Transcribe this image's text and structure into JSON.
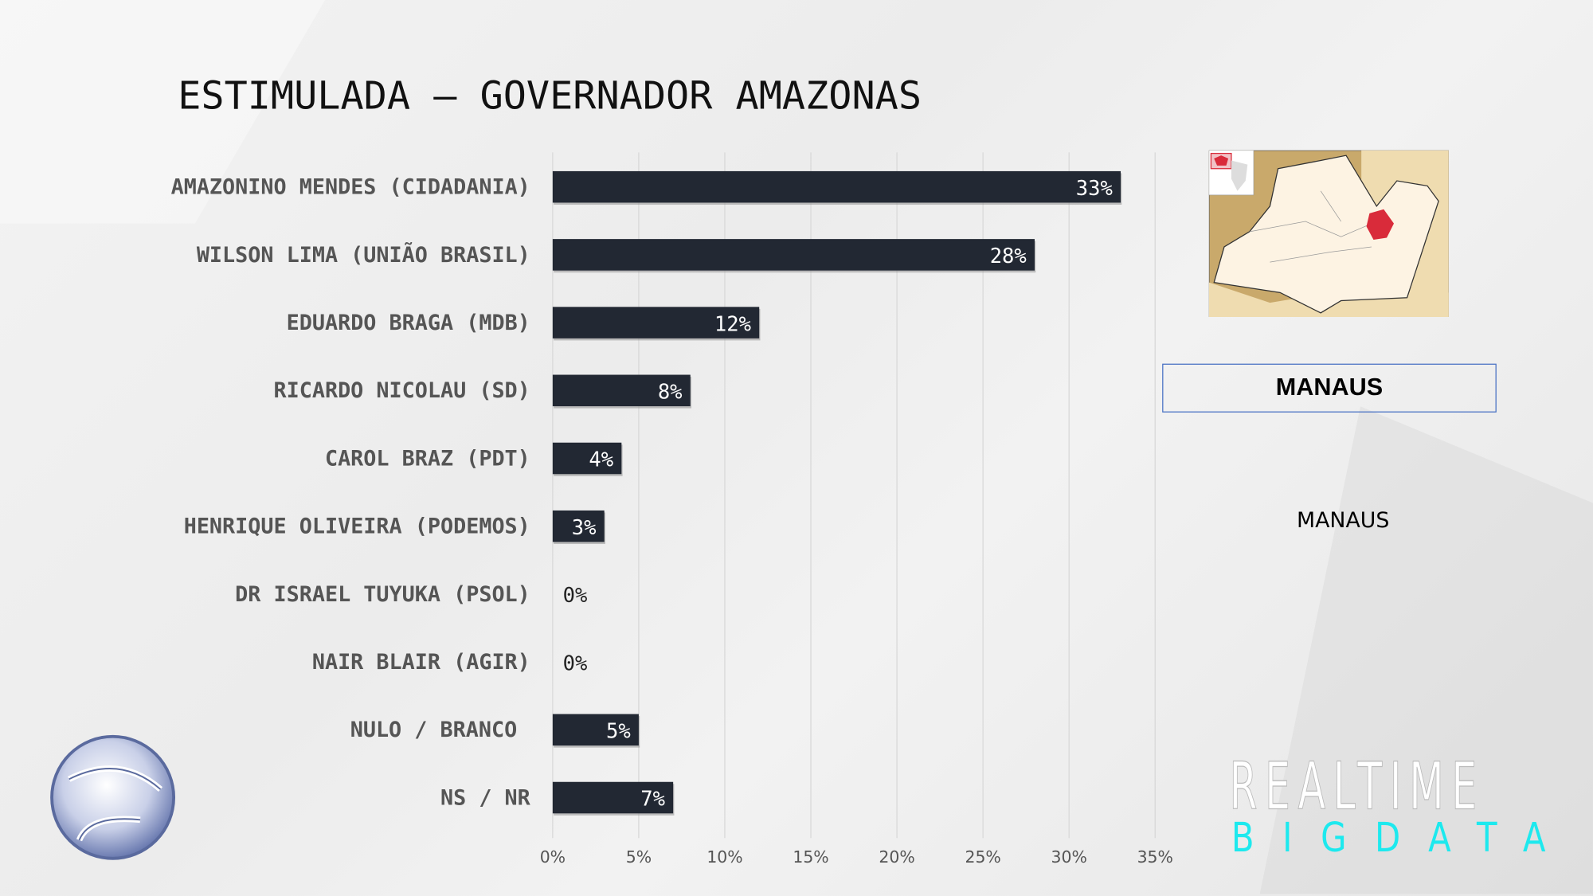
{
  "title": "ESTIMULADA – GOVERNADOR AMAZONAS",
  "chart_data": {
    "type": "bar",
    "orientation": "horizontal",
    "title": "ESTIMULADA – GOVERNADOR AMAZONAS",
    "categories": [
      "AMAZONINO MENDES (CIDADANIA)",
      "WILSON LIMA (UNIÃO BRASIL)",
      "EDUARDO BRAGA (MDB)",
      "RICARDO NICOLAU (SD)",
      "CAROL BRAZ (PDT)",
      "HENRIQUE OLIVEIRA (PODEMOS)",
      "DR ISRAEL TUYUKA (PSOL)",
      "NAIR BLAIR (AGIR)",
      "NULO / BRANCO",
      "NS / NR"
    ],
    "values": [
      33,
      28,
      12,
      8,
      4,
      3,
      0,
      0,
      5,
      7
    ],
    "value_labels": [
      "33%",
      "28%",
      "12%",
      "8%",
      "4%",
      "3%",
      "0%",
      "0%",
      "5%",
      "7%"
    ],
    "xlim": [
      0,
      35
    ],
    "xticks": [
      "0%",
      "5%",
      "10%",
      "15%",
      "20%",
      "25%",
      "30%",
      "35%"
    ],
    "grid": true,
    "bar_color": "#222833"
  },
  "region": {
    "box_label": "MANAUS",
    "sub_label": "MANAUS"
  },
  "brand": {
    "line1": "REALTIME",
    "line2": "BIGDATA",
    "accent": "#1de9ee"
  }
}
